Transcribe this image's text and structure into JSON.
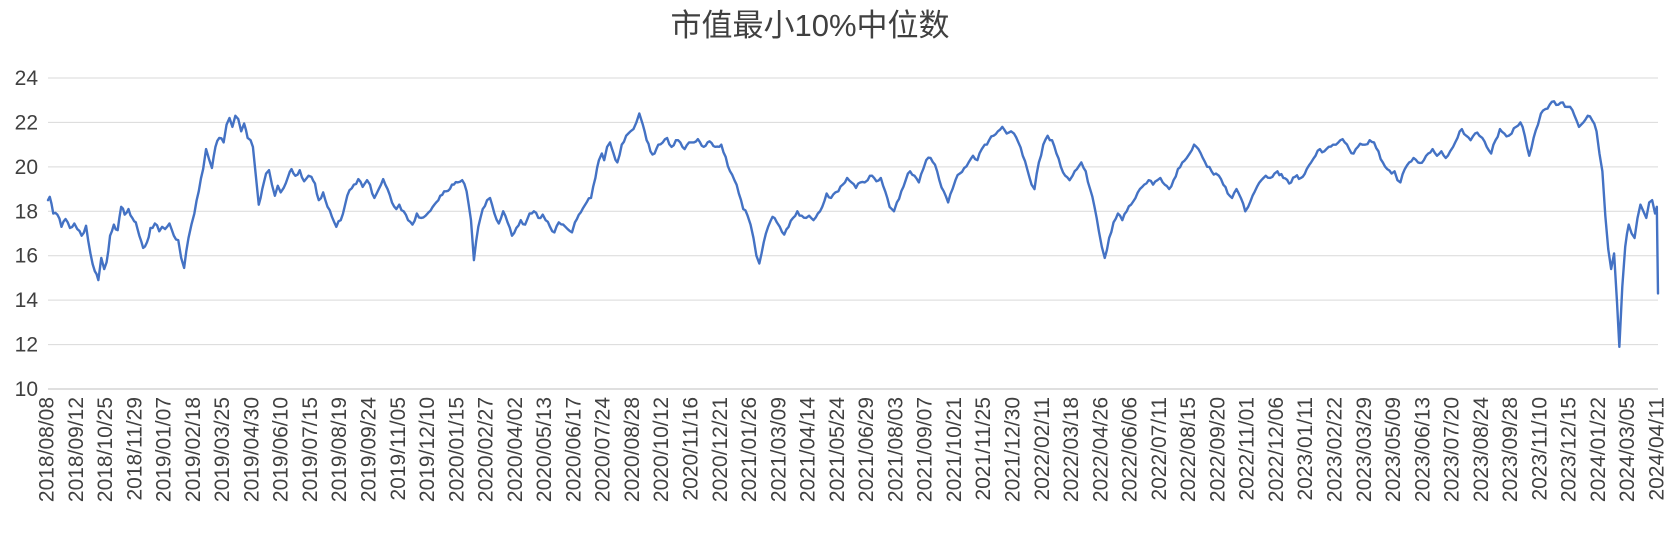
{
  "title": "市值最小10%中位数",
  "colors": {
    "line": "#4472C4",
    "grid": "#D9D9D9",
    "axis": "#BFBFBF",
    "tick_text": "#404040",
    "title_text": "#404040",
    "background": "#FFFFFF"
  },
  "chart_data": {
    "type": "line",
    "title": "市值最小10%中位数",
    "legend": "none",
    "grid": "horizontal",
    "xlabel": "",
    "ylabel": "",
    "ylim": [
      10,
      24
    ],
    "yticks": [
      10,
      12,
      14,
      16,
      18,
      20,
      22,
      24
    ],
    "x_tick_labels": [
      "2018/08/08",
      "2018/09/12",
      "2018/10/25",
      "2018/11/29",
      "2019/01/07",
      "2019/02/18",
      "2019/03/25",
      "2019/04/30",
      "2019/06/10",
      "2019/07/15",
      "2019/08/19",
      "2019/09/24",
      "2019/11/05",
      "2019/12/10",
      "2020/01/15",
      "2020/02/27",
      "2020/04/02",
      "2020/05/13",
      "2020/06/17",
      "2020/07/24",
      "2020/08/28",
      "2020/10/12",
      "2020/11/16",
      "2020/12/21",
      "2021/01/26",
      "2021/03/09",
      "2021/04/14",
      "2021/05/24",
      "2021/06/29",
      "2021/08/03",
      "2021/09/07",
      "2021/10/21",
      "2021/11/25",
      "2021/12/30",
      "2022/02/11",
      "2022/03/18",
      "2022/04/26",
      "2022/06/06",
      "2022/07/11",
      "2022/08/15",
      "2022/09/20",
      "2022/11/01",
      "2022/12/06",
      "2023/01/11",
      "2023/02/22",
      "2023/03/29",
      "2023/05/09",
      "2023/06/13",
      "2023/07/20",
      "2023/08/24",
      "2023/09/28",
      "2023/11/10",
      "2023/12/15",
      "2024/01/22",
      "2024/03/05",
      "2024/04/11"
    ],
    "x_unit": "tick_index (0 to 55, evenly spaced category axis)",
    "series": [
      {
        "name": "市值最小10%中位数",
        "points_flat_xv": [
          0,
          18.5,
          0.06,
          18.65,
          0.18,
          17.9,
          0.32,
          17.85,
          0.46,
          17.3,
          0.6,
          17.65,
          0.75,
          17.25,
          0.9,
          17.45,
          1.0,
          17.2,
          1.15,
          16.9,
          1.3,
          17.35,
          1.45,
          16.1,
          1.6,
          15.3,
          1.72,
          14.9,
          1.82,
          15.9,
          1.92,
          15.4,
          2.0,
          15.7,
          2.12,
          16.9,
          2.25,
          17.4,
          2.38,
          17.15,
          2.5,
          18.2,
          2.62,
          17.85,
          2.75,
          18.1,
          2.88,
          17.7,
          3.0,
          17.5,
          3.12,
          16.9,
          3.25,
          16.35,
          3.38,
          16.6,
          3.5,
          17.25,
          3.65,
          17.45,
          3.8,
          17.1,
          3.9,
          17.3,
          4.0,
          17.2,
          4.15,
          17.45,
          4.3,
          16.9,
          4.45,
          16.7,
          4.55,
          15.9,
          4.65,
          15.45,
          4.8,
          16.8,
          4.9,
          17.4,
          5.0,
          17.9,
          5.15,
          18.9,
          5.3,
          19.9,
          5.4,
          20.8,
          5.5,
          20.35,
          5.6,
          19.95,
          5.72,
          20.9,
          5.85,
          21.3,
          6.0,
          21.1,
          6.1,
          21.9,
          6.2,
          22.2,
          6.3,
          21.8,
          6.4,
          22.3,
          6.5,
          22.15,
          6.6,
          21.6,
          6.7,
          21.95,
          6.82,
          21.3,
          6.92,
          21.2,
          7.0,
          20.9,
          7.1,
          19.6,
          7.2,
          18.3,
          7.32,
          19.0,
          7.45,
          19.7,
          7.55,
          19.85,
          7.65,
          19.2,
          7.75,
          18.7,
          7.85,
          19.15,
          7.95,
          18.85,
          8.05,
          19.05,
          8.2,
          19.55,
          8.32,
          19.9,
          8.45,
          19.6,
          8.6,
          19.85,
          8.75,
          19.35,
          8.9,
          19.6,
          9.0,
          19.55,
          9.12,
          19.25,
          9.25,
          18.5,
          9.4,
          18.85,
          9.55,
          18.2,
          9.7,
          17.75,
          9.85,
          17.3,
          10.0,
          17.6,
          10.15,
          18.3,
          10.3,
          18.95,
          10.45,
          19.2,
          10.6,
          19.45,
          10.75,
          19.1,
          10.9,
          19.4,
          11.0,
          19.2,
          11.15,
          18.6,
          11.3,
          19.0,
          11.45,
          19.45,
          11.6,
          19.0,
          11.75,
          18.4,
          11.9,
          18.1,
          12.0,
          18.3,
          12.15,
          18.0,
          12.3,
          17.6,
          12.45,
          17.4,
          12.6,
          17.9,
          12.75,
          17.7,
          12.9,
          17.8,
          13.0,
          17.95,
          13.2,
          18.3,
          13.4,
          18.7,
          13.6,
          18.9,
          13.8,
          19.2,
          14.0,
          19.3,
          14.15,
          19.4,
          14.3,
          18.9,
          14.45,
          17.6,
          14.55,
          15.8,
          14.7,
          17.3,
          14.85,
          18.1,
          15.0,
          18.5,
          15.1,
          18.6,
          15.25,
          17.9,
          15.4,
          17.45,
          15.55,
          18.0,
          15.7,
          17.5,
          15.85,
          16.9,
          16.0,
          17.25,
          16.15,
          17.6,
          16.3,
          17.4,
          16.45,
          17.9,
          16.6,
          18.0,
          16.75,
          17.7,
          16.9,
          17.85,
          17.0,
          17.6,
          17.15,
          17.3,
          17.3,
          17.05,
          17.45,
          17.5,
          17.6,
          17.4,
          17.75,
          17.2,
          17.9,
          17.05,
          18.0,
          17.5,
          18.2,
          17.95,
          18.4,
          18.4,
          18.55,
          18.6,
          18.7,
          19.5,
          18.82,
          20.3,
          18.92,
          20.6,
          19.0,
          20.3,
          19.1,
          20.9,
          19.2,
          21.1,
          19.32,
          20.6,
          19.45,
          20.2,
          19.6,
          21.0,
          19.75,
          21.4,
          19.9,
          21.6,
          20.0,
          21.7,
          20.1,
          22.0,
          20.2,
          22.4,
          20.32,
          21.9,
          20.45,
          21.2,
          20.58,
          20.7,
          20.72,
          20.6,
          20.85,
          21.0,
          21.0,
          21.1,
          21.15,
          21.3,
          21.3,
          20.9,
          21.45,
          21.2,
          21.6,
          21.1,
          21.75,
          20.8,
          21.9,
          21.1,
          22.0,
          21.1,
          22.2,
          21.25,
          22.4,
          20.9,
          22.6,
          21.15,
          22.8,
          20.9,
          23.0,
          21.0,
          23.15,
          20.45,
          23.3,
          19.8,
          23.45,
          19.4,
          23.6,
          18.8,
          23.75,
          18.1,
          23.9,
          17.8,
          24.0,
          17.4,
          24.1,
          16.8,
          24.2,
          16.0,
          24.3,
          15.65,
          24.45,
          16.6,
          24.6,
          17.3,
          24.75,
          17.75,
          24.9,
          17.5,
          25.0,
          17.3,
          25.15,
          16.95,
          25.3,
          17.3,
          25.45,
          17.7,
          25.6,
          18.0,
          25.75,
          17.8,
          25.9,
          17.7,
          26.0,
          17.8,
          26.15,
          17.6,
          26.3,
          17.9,
          26.45,
          18.2,
          26.6,
          18.8,
          26.75,
          18.6,
          26.9,
          18.85,
          27.0,
          18.9,
          27.15,
          19.2,
          27.3,
          19.5,
          27.45,
          19.3,
          27.6,
          19.05,
          27.75,
          19.3,
          27.9,
          19.3,
          28.0,
          19.4,
          28.15,
          19.6,
          28.3,
          19.35,
          28.45,
          19.5,
          28.6,
          18.9,
          28.75,
          18.2,
          28.9,
          18.0,
          29.0,
          18.4,
          29.15,
          18.9,
          29.3,
          19.4,
          29.45,
          19.8,
          29.6,
          19.6,
          29.75,
          19.3,
          29.9,
          19.9,
          30.0,
          20.3,
          30.15,
          20.4,
          30.3,
          20.1,
          30.45,
          19.4,
          30.6,
          18.9,
          30.75,
          18.4,
          30.9,
          19.0,
          31.0,
          19.4,
          31.15,
          19.7,
          31.3,
          19.95,
          31.45,
          20.2,
          31.6,
          20.5,
          31.75,
          20.3,
          31.9,
          20.8,
          32.0,
          21.0,
          32.15,
          21.2,
          32.3,
          21.4,
          32.45,
          21.6,
          32.6,
          21.8,
          32.75,
          21.5,
          32.9,
          21.6,
          33.0,
          21.5,
          33.15,
          21.1,
          33.3,
          20.5,
          33.45,
          19.9,
          33.6,
          19.2,
          33.7,
          19.0,
          33.85,
          20.2,
          34.0,
          21.0,
          34.15,
          21.4,
          34.3,
          21.2,
          34.45,
          20.6,
          34.6,
          20.0,
          34.75,
          19.6,
          34.9,
          19.4,
          35.0,
          19.6,
          35.15,
          19.9,
          35.3,
          20.2,
          35.45,
          19.8,
          35.6,
          19.0,
          35.75,
          18.2,
          35.9,
          17.1,
          36.0,
          16.4,
          36.1,
          15.9,
          36.25,
          16.8,
          36.4,
          17.5,
          36.55,
          17.9,
          36.7,
          17.6,
          36.85,
          18.0,
          37.0,
          18.3,
          37.15,
          18.6,
          37.3,
          19.0,
          37.45,
          19.2,
          37.6,
          19.4,
          37.75,
          19.2,
          37.9,
          19.4,
          38.0,
          19.5,
          38.15,
          19.2,
          38.3,
          19.0,
          38.45,
          19.4,
          38.6,
          19.9,
          38.75,
          20.2,
          38.9,
          20.4,
          39.0,
          20.6,
          39.15,
          21.0,
          39.3,
          20.8,
          39.45,
          20.4,
          39.6,
          20.0,
          39.75,
          19.8,
          39.9,
          19.7,
          40.0,
          19.6,
          40.15,
          19.2,
          40.3,
          18.8,
          40.45,
          18.6,
          40.6,
          19.0,
          40.75,
          18.6,
          40.9,
          18.0,
          41.0,
          18.2,
          41.15,
          18.7,
          41.3,
          19.1,
          41.45,
          19.4,
          41.6,
          19.6,
          41.75,
          19.5,
          41.9,
          19.7,
          42.0,
          19.8,
          42.2,
          19.5,
          42.4,
          19.25,
          42.6,
          19.55,
          42.8,
          19.5,
          43.0,
          19.9,
          43.15,
          20.2,
          43.3,
          20.5,
          43.45,
          20.8,
          43.6,
          20.7,
          43.75,
          20.9,
          43.9,
          21.0,
          44.0,
          21.0,
          44.15,
          21.2,
          44.3,
          21.1,
          44.45,
          20.8,
          44.6,
          20.6,
          44.75,
          20.9,
          44.9,
          21.0,
          45.0,
          21.0,
          45.15,
          21.2,
          45.3,
          21.1,
          45.45,
          20.7,
          45.6,
          20.2,
          45.75,
          19.9,
          45.9,
          19.7,
          46.0,
          19.8,
          46.1,
          19.4,
          46.2,
          19.3,
          46.35,
          19.9,
          46.5,
          20.2,
          46.65,
          20.4,
          46.8,
          20.2,
          47.0,
          20.3,
          47.15,
          20.6,
          47.3,
          20.8,
          47.45,
          20.5,
          47.6,
          20.7,
          47.75,
          20.4,
          47.9,
          20.7,
          48.0,
          20.9,
          48.15,
          21.3,
          48.3,
          21.7,
          48.45,
          21.4,
          48.6,
          21.2,
          48.75,
          21.5,
          48.9,
          21.4,
          49.0,
          21.3,
          49.15,
          20.9,
          49.3,
          20.6,
          49.45,
          21.2,
          49.6,
          21.7,
          49.75,
          21.5,
          49.9,
          21.4,
          50.0,
          21.5,
          50.15,
          21.8,
          50.3,
          22.0,
          50.45,
          21.4,
          50.6,
          20.5,
          50.75,
          21.3,
          50.9,
          21.9,
          51.0,
          22.4,
          51.15,
          22.6,
          51.3,
          22.8,
          51.45,
          22.95,
          51.6,
          22.8,
          51.75,
          22.9,
          51.9,
          22.7,
          52.0,
          22.7,
          52.15,
          22.3,
          52.3,
          21.8,
          52.45,
          22.0,
          52.6,
          22.3,
          52.75,
          22.1,
          52.9,
          21.6,
          53.0,
          20.6,
          53.1,
          19.8,
          53.2,
          17.8,
          53.3,
          16.3,
          53.4,
          15.4,
          53.5,
          16.1,
          53.6,
          13.9,
          53.68,
          11.9,
          53.78,
          14.6,
          53.88,
          16.4,
          54.0,
          17.4,
          54.1,
          17.0,
          54.2,
          16.8,
          54.3,
          17.7,
          54.4,
          18.3,
          54.5,
          18.0,
          54.6,
          17.7,
          54.7,
          18.4,
          54.8,
          18.5,
          54.9,
          17.9,
          54.96,
          18.2,
          55.0,
          14.3
        ]
      }
    ]
  }
}
